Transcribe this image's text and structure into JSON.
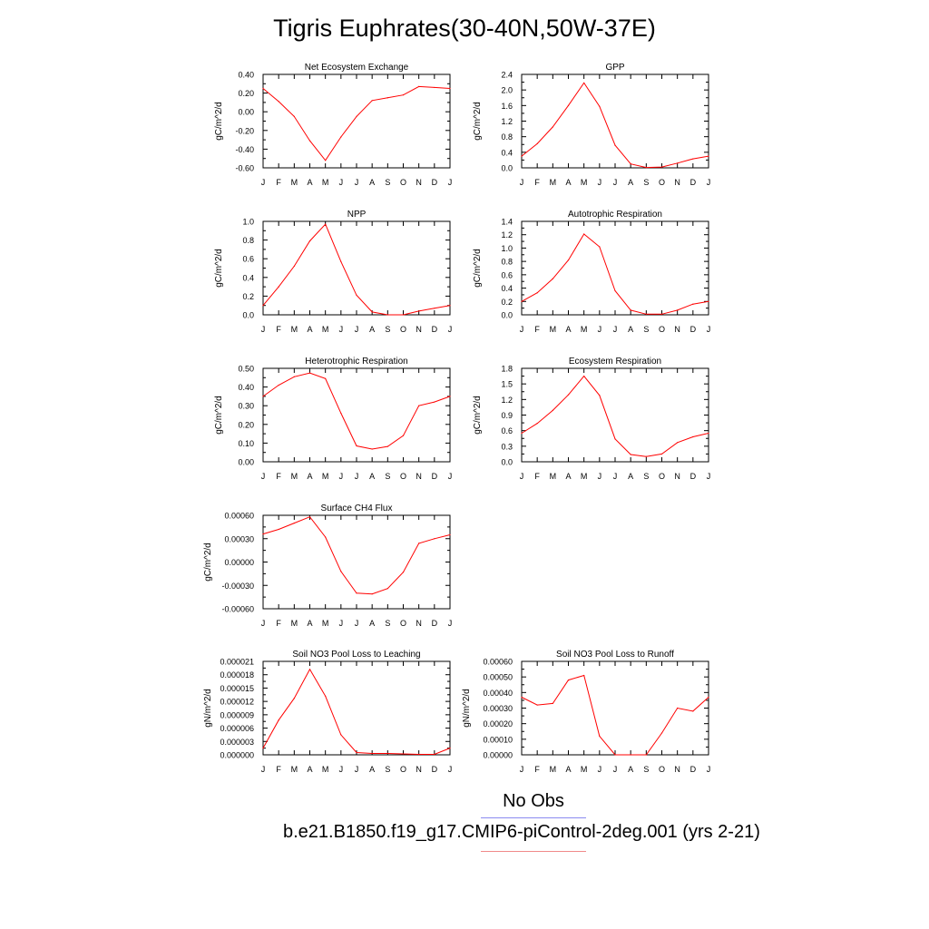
{
  "title": "Tigris Euphrates(30-40N,50W-37E)",
  "month_labels": [
    "J",
    "F",
    "M",
    "A",
    "M",
    "J",
    "J",
    "A",
    "S",
    "O",
    "N",
    "D",
    "J"
  ],
  "colors": {
    "series": "#ff0000",
    "axis": "#000000",
    "obs_line": "#8a8af0",
    "case_line": "#f08a8a"
  },
  "legend": {
    "no_obs": "No Obs",
    "case": "b.e21.B1850.f19_g17.CMIP6-piControl-2deg.001 (yrs 2-21)"
  },
  "chart_data": [
    {
      "type": "line",
      "title": "Net Ecosystem Exchange",
      "ylabel": "gC/m^2/d",
      "ylim": [
        -0.6,
        0.4
      ],
      "yticks": [
        "0.40",
        "0.20",
        "0.00",
        "-0.20",
        "-0.40",
        "-0.60"
      ],
      "ytick_values": [
        0.4,
        0.2,
        0.0,
        -0.2,
        -0.4,
        -0.6
      ],
      "values": [
        0.25,
        0.11,
        -0.05,
        -0.31,
        -0.52,
        -0.27,
        -0.05,
        0.12,
        0.15,
        0.18,
        0.27,
        0.26,
        0.25
      ]
    },
    {
      "type": "line",
      "title": "GPP",
      "ylabel": "gC/m^2/d",
      "ylim": [
        0.0,
        2.4
      ],
      "yticks": [
        "2.4",
        "2.0",
        "1.6",
        "1.2",
        "0.8",
        "0.4",
        "0.0"
      ],
      "ytick_values": [
        2.4,
        2.0,
        1.6,
        1.2,
        0.8,
        0.4,
        0.0
      ],
      "values": [
        0.3,
        0.62,
        1.05,
        1.6,
        2.18,
        1.58,
        0.58,
        0.1,
        0.01,
        0.02,
        0.12,
        0.23,
        0.3
      ]
    },
    {
      "type": "line",
      "title": "NPP",
      "ylabel": "gC/m^2/d",
      "ylim": [
        0.0,
        1.0
      ],
      "yticks": [
        "1.0",
        "0.8",
        "0.6",
        "0.4",
        "0.2",
        "0.0"
      ],
      "ytick_values": [
        1.0,
        0.8,
        0.6,
        0.4,
        0.2,
        0.0
      ],
      "values": [
        0.1,
        0.3,
        0.52,
        0.79,
        0.97,
        0.57,
        0.21,
        0.03,
        0.0,
        0.0,
        0.04,
        0.07,
        0.1
      ]
    },
    {
      "type": "line",
      "title": "Autotrophic Respiration",
      "ylabel": "gC/m^2/d",
      "ylim": [
        0.0,
        1.4
      ],
      "yticks": [
        "1.4",
        "1.2",
        "1.0",
        "0.8",
        "0.6",
        "0.4",
        "0.2",
        "0.0"
      ],
      "ytick_values": [
        1.4,
        1.2,
        1.0,
        0.8,
        0.6,
        0.4,
        0.2,
        0.0
      ],
      "values": [
        0.2,
        0.33,
        0.54,
        0.82,
        1.21,
        1.02,
        0.36,
        0.07,
        0.01,
        0.01,
        0.07,
        0.16,
        0.2
      ]
    },
    {
      "type": "line",
      "title": "Heterotrophic Respiration",
      "ylabel": "gC/m^2/d",
      "ylim": [
        0.0,
        0.5
      ],
      "yticks": [
        "0.50",
        "0.40",
        "0.30",
        "0.20",
        "0.10",
        "0.00"
      ],
      "ytick_values": [
        0.5,
        0.4,
        0.3,
        0.2,
        0.1,
        0.0
      ],
      "values": [
        0.35,
        0.41,
        0.455,
        0.475,
        0.445,
        0.26,
        0.085,
        0.068,
        0.082,
        0.14,
        0.3,
        0.32,
        0.35
      ]
    },
    {
      "type": "line",
      "title": "Ecosystem Respiration",
      "ylabel": "gC/m^2/d",
      "ylim": [
        0.0,
        1.8
      ],
      "yticks": [
        "1.8",
        "1.5",
        "1.2",
        "0.9",
        "0.6",
        "0.3",
        "0.0"
      ],
      "ytick_values": [
        1.8,
        1.5,
        1.2,
        0.9,
        0.6,
        0.3,
        0.0
      ],
      "values": [
        0.55,
        0.74,
        0.99,
        1.29,
        1.65,
        1.28,
        0.44,
        0.14,
        0.1,
        0.15,
        0.37,
        0.48,
        0.55
      ]
    },
    {
      "type": "line",
      "title": "Surface CH4 Flux",
      "ylabel": "gC/m^2/d",
      "ylim": [
        -0.0006,
        0.0006
      ],
      "yticks": [
        "0.00060",
        "0.00030",
        "0.00000",
        "-0.00030",
        "-0.00060"
      ],
      "ytick_values": [
        0.0006,
        0.0003,
        0.0,
        -0.0003,
        -0.0006
      ],
      "values": [
        0.00036,
        0.00042,
        0.0005,
        0.00058,
        0.00032,
        -0.00012,
        -0.0004,
        -0.00041,
        -0.00034,
        -0.00013,
        0.00024,
        0.0003,
        0.00035
      ]
    },
    {
      "type": "line",
      "title": "Soil NO3 Pool Loss to Leaching",
      "ylabel": "gN/m^2/d",
      "ylim": [
        0.0,
        2.1e-05
      ],
      "yticks": [
        "0.000021",
        "0.000018",
        "0.000015",
        "0.000012",
        "0.000009",
        "0.000006",
        "0.000003",
        "0.000000"
      ],
      "ytick_values": [
        2.1e-05,
        1.8e-05,
        1.5e-05,
        1.2e-05,
        9e-06,
        6e-06,
        3e-06,
        0.0
      ],
      "values": [
        1.5e-06,
        7.8e-06,
        1.27e-05,
        1.92e-05,
        1.32e-05,
        4.5e-06,
        5e-07,
        3e-07,
        3e-07,
        2e-07,
        1e-07,
        1e-07,
        1.5e-06
      ]
    },
    {
      "type": "line",
      "title": "Soil NO3 Pool Loss to Runoff",
      "ylabel": "gN/m^2/d",
      "ylim": [
        0.0,
        0.0006
      ],
      "yticks": [
        "0.00060",
        "0.00050",
        "0.00040",
        "0.00030",
        "0.00020",
        "0.00010",
        "0.00000"
      ],
      "ytick_values": [
        0.0006,
        0.0005,
        0.0004,
        0.0003,
        0.0002,
        0.0001,
        0.0
      ],
      "values": [
        0.00037,
        0.00032,
        0.00033,
        0.00048,
        0.00051,
        0.00012,
        0.0,
        0.0,
        0.0,
        0.00014,
        0.0003,
        0.00028,
        0.00037
      ]
    }
  ]
}
